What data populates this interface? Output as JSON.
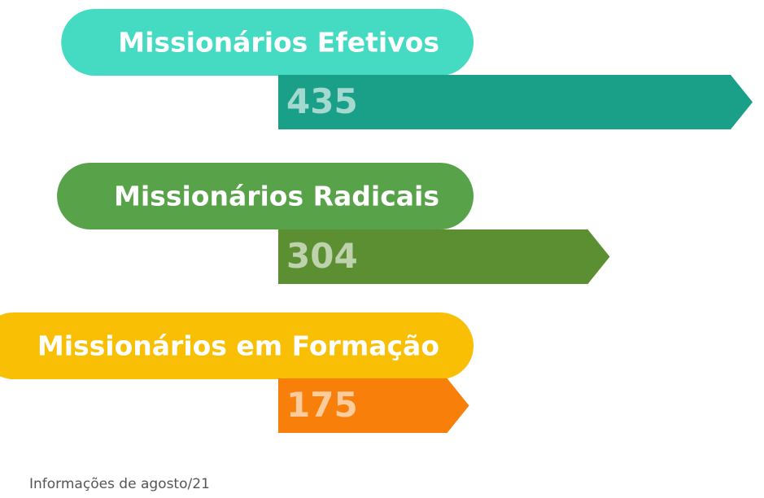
{
  "chart_data": {
    "type": "bar",
    "categories": [
      "Missionários Efetivos",
      "Missionários Radicais",
      "Missionários em Formação"
    ],
    "values": [
      435,
      304,
      175
    ],
    "colors": [
      "#1aa088",
      "#5b8f32",
      "#f8800a"
    ],
    "label_colors": [
      "#44dbc2",
      "#58a349",
      "#f8bf05"
    ],
    "note": "Informações de agosto/21"
  }
}
